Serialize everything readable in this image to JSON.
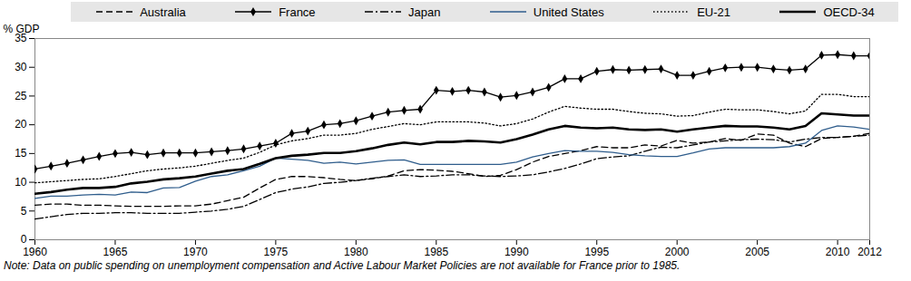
{
  "chart_data": {
    "type": "line",
    "y_label": "% GDP",
    "note": "Note: Data on public spending on unemployment compensation and Active Labour Market Policies are not available for France prior to 1985.",
    "x": [
      1960,
      1961,
      1962,
      1963,
      1964,
      1965,
      1966,
      1967,
      1968,
      1969,
      1970,
      1971,
      1972,
      1973,
      1974,
      1975,
      1976,
      1977,
      1978,
      1979,
      1980,
      1981,
      1982,
      1983,
      1984,
      1985,
      1986,
      1987,
      1988,
      1989,
      1990,
      1991,
      1992,
      1993,
      1994,
      1995,
      1996,
      1997,
      1998,
      1999,
      2000,
      2001,
      2002,
      2003,
      2004,
      2005,
      2006,
      2007,
      2008,
      2009,
      2010,
      2011,
      2012
    ],
    "xlim": [
      1960,
      2012
    ],
    "xticks": [
      1960,
      1965,
      1970,
      1975,
      1980,
      1985,
      1990,
      1995,
      2000,
      2005,
      2010,
      2012
    ],
    "ylim": [
      0,
      35
    ],
    "yticks": [
      0,
      5,
      10,
      15,
      20,
      25,
      30,
      35
    ],
    "grid": false,
    "legend": "top",
    "series": [
      {
        "name": "Australia",
        "color": "#000000",
        "line_style": "dashed",
        "marker": "none",
        "values": [
          6.0,
          6.2,
          6.2,
          6.0,
          6.0,
          5.9,
          5.8,
          5.8,
          5.8,
          5.9,
          5.9,
          6.2,
          6.8,
          7.4,
          9.0,
          10.5,
          11.0,
          11.0,
          10.8,
          10.5,
          10.3,
          10.6,
          11.1,
          12.0,
          12.2,
          12.1,
          11.9,
          11.5,
          11.0,
          11.2,
          12.2,
          13.5,
          14.5,
          15.0,
          15.5,
          16.2,
          16.0,
          16.0,
          16.5,
          16.3,
          17.3,
          16.8,
          17.0,
          17.6,
          17.3,
          18.4,
          18.2,
          16.8,
          16.2,
          17.6,
          17.8,
          18.0,
          18.5
        ]
      },
      {
        "name": "France",
        "color": "#000000",
        "line_style": "solid",
        "marker": "diamond",
        "values": [
          12.3,
          12.8,
          13.3,
          13.9,
          14.5,
          15.0,
          15.2,
          14.8,
          15.1,
          15.1,
          15.1,
          15.3,
          15.5,
          15.8,
          16.3,
          16.8,
          18.5,
          18.9,
          20.0,
          20.2,
          20.7,
          21.5,
          22.2,
          22.5,
          22.7,
          26.0,
          25.8,
          26.0,
          25.7,
          24.8,
          25.1,
          25.7,
          26.5,
          28.0,
          28.0,
          29.3,
          29.6,
          29.5,
          29.6,
          29.7,
          28.6,
          28.6,
          29.3,
          29.9,
          30.0,
          30.0,
          29.7,
          29.5,
          29.7,
          32.1,
          32.2,
          32.0,
          32.0
        ]
      },
      {
        "name": "Japan",
        "color": "#000000",
        "line_style": "dashdot",
        "marker": "none",
        "values": [
          3.6,
          4.0,
          4.4,
          4.6,
          4.6,
          4.7,
          4.7,
          4.6,
          4.6,
          4.6,
          4.8,
          5.0,
          5.3,
          5.8,
          7.0,
          8.2,
          8.8,
          9.2,
          9.8,
          10.0,
          10.3,
          10.7,
          11.0,
          11.3,
          11.0,
          11.1,
          11.3,
          11.3,
          11.1,
          11.0,
          11.1,
          11.3,
          11.8,
          12.4,
          13.2,
          14.1,
          14.4,
          14.6,
          15.4,
          16.1,
          16.0,
          16.5,
          17.0,
          17.2,
          17.4,
          17.5,
          17.4,
          17.0,
          17.5,
          17.8,
          17.8,
          18.0,
          18.2
        ]
      },
      {
        "name": "United States",
        "color": "#2f5d8c",
        "line_style": "solid",
        "marker": "none",
        "values": [
          7.2,
          7.6,
          7.6,
          7.8,
          7.9,
          7.8,
          8.3,
          8.2,
          9.0,
          9.1,
          10.2,
          11.0,
          11.3,
          12.0,
          12.8,
          14.2,
          14.0,
          13.8,
          13.3,
          13.5,
          13.2,
          13.5,
          13.8,
          13.9,
          13.1,
          13.1,
          13.1,
          13.1,
          13.1,
          13.1,
          13.5,
          14.4,
          15.0,
          15.5,
          15.4,
          15.4,
          15.2,
          14.8,
          14.6,
          14.5,
          14.5,
          15.1,
          15.8,
          16.0,
          16.0,
          16.0,
          16.0,
          16.2,
          16.8,
          19.0,
          19.8,
          19.6,
          19.2
        ]
      },
      {
        "name": "EU-21",
        "color": "#000000",
        "line_style": "dotted",
        "marker": "none",
        "values": [
          9.9,
          10.1,
          10.3,
          10.5,
          10.6,
          11.0,
          11.5,
          12.0,
          12.3,
          12.5,
          12.8,
          13.3,
          13.8,
          14.2,
          15.2,
          16.5,
          17.2,
          17.6,
          18.2,
          18.2,
          18.5,
          19.2,
          19.7,
          20.2,
          20.0,
          20.5,
          20.5,
          20.5,
          20.3,
          19.8,
          20.2,
          21.0,
          22.2,
          23.2,
          22.9,
          22.7,
          22.7,
          22.3,
          22.0,
          21.9,
          21.5,
          21.6,
          22.2,
          22.7,
          22.6,
          22.6,
          22.3,
          21.9,
          22.4,
          25.3,
          25.3,
          24.9,
          24.9
        ]
      },
      {
        "name": "OECD-34",
        "color": "#000000",
        "line_style": "bold",
        "marker": "none",
        "values": [
          8.0,
          8.3,
          8.7,
          9.0,
          9.0,
          9.2,
          9.8,
          10.1,
          10.5,
          10.7,
          11.0,
          11.5,
          12.0,
          12.3,
          13.2,
          14.2,
          14.6,
          14.8,
          15.1,
          15.1,
          15.4,
          15.9,
          16.5,
          16.9,
          16.6,
          17.0,
          17.0,
          17.2,
          17.1,
          16.9,
          17.5,
          18.3,
          19.2,
          19.8,
          19.5,
          19.4,
          19.5,
          19.2,
          19.1,
          19.2,
          18.8,
          19.2,
          19.5,
          19.8,
          19.7,
          19.7,
          19.5,
          19.2,
          19.8,
          22.0,
          21.8,
          21.6,
          21.6
        ]
      }
    ]
  }
}
